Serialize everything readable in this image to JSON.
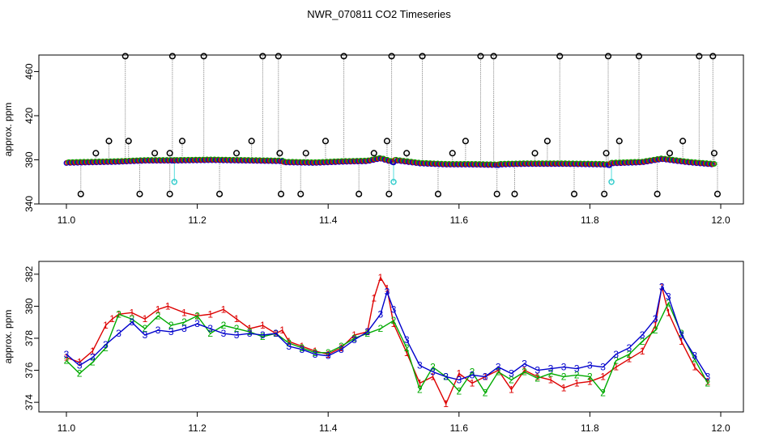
{
  "title": "NWR_070811  CO2 Timeseries",
  "chart_data": [
    {
      "type": "scatter",
      "name": "top-panel",
      "xlabel": "",
      "ylabel": "approx. ppm",
      "xlim": [
        11.0,
        12.0
      ],
      "ylim": [
        340,
        475
      ],
      "xticks": [
        "11.0",
        "11.2",
        "11.4",
        "11.6",
        "11.8",
        "12.0"
      ],
      "yticks": [
        "340",
        "380",
        "420",
        "460"
      ],
      "segments": [
        {
          "x": [
            11.0,
            11.04,
            11.08,
            11.12,
            11.165
          ],
          "y": [
            377.5,
            378,
            378.5,
            379.5,
            379.5
          ]
        },
        {
          "x": [
            11.165,
            11.22,
            11.28,
            11.33
          ],
          "y": [
            379.5,
            380,
            379.5,
            379
          ]
        },
        {
          "x": [
            11.33,
            11.38,
            11.42,
            11.46,
            11.48,
            11.5
          ],
          "y": [
            378,
            377.5,
            378.5,
            379,
            381.5,
            378
          ]
        },
        {
          "x": [
            11.5,
            11.54,
            11.58,
            11.62,
            11.66
          ],
          "y": [
            380,
            377,
            376,
            376,
            375.5
          ]
        },
        {
          "x": [
            11.66,
            11.7,
            11.76,
            11.82,
            11.83
          ],
          "y": [
            376,
            376.5,
            376.5,
            376,
            375.5
          ]
        },
        {
          "x": [
            11.83,
            11.88,
            11.91,
            11.95,
            11.99
          ],
          "y": [
            377,
            378,
            381,
            378,
            376
          ]
        }
      ],
      "high_spikes_x": [
        11.09,
        11.162,
        11.21,
        11.3,
        11.324,
        11.424,
        11.497,
        11.544,
        11.633,
        11.653,
        11.754,
        11.828,
        11.875,
        11.967,
        11.988
      ],
      "high_spike_value": 474,
      "mid_spikes_x": [
        11.045,
        11.065,
        11.095,
        11.135,
        11.158,
        11.177,
        11.26,
        11.283,
        11.326,
        11.366,
        11.396,
        11.47,
        11.49,
        11.52,
        11.59,
        11.61,
        11.716,
        11.735,
        11.825,
        11.845,
        11.922,
        11.942,
        11.99
      ],
      "mid_spike_values": [
        386,
        397,
        397,
        386,
        386,
        397,
        386,
        397,
        386,
        386,
        397,
        386,
        397,
        386,
        386,
        397,
        386,
        397,
        386,
        397,
        386,
        397,
        386
      ],
      "low_spikes_x": [
        11.022,
        11.112,
        11.158,
        11.234,
        11.328,
        11.358,
        11.447,
        11.493,
        11.568,
        11.658,
        11.685,
        11.776,
        11.822,
        11.903,
        11.995
      ],
      "low_spike_value": 349,
      "cyan_points": [
        [
          11.165,
          360
        ],
        [
          11.5,
          360
        ],
        [
          11.833,
          360
        ]
      ]
    },
    {
      "type": "line",
      "name": "bottom-panel",
      "xlabel": "",
      "ylabel": "approx. ppm",
      "xlim": [
        11.0,
        12.0
      ],
      "ylim": [
        373.4,
        382.8
      ],
      "xticks": [
        "11.0",
        "11.2",
        "11.4",
        "11.6",
        "11.8",
        "12.0"
      ],
      "yticks": [
        "374",
        "376",
        "378",
        "380",
        "382"
      ],
      "series": [
        {
          "name": "1",
          "color": "#dd0000",
          "x": [
            11.0,
            11.02,
            11.04,
            11.06,
            11.07,
            11.08,
            11.1,
            11.12,
            11.14,
            11.155,
            11.18,
            11.2,
            11.22,
            11.24,
            11.26,
            11.28,
            11.3,
            11.32,
            11.33,
            11.34,
            11.36,
            11.38,
            11.4,
            11.42,
            11.44,
            11.46,
            11.47,
            11.48,
            11.49,
            11.5,
            11.52,
            11.54,
            11.56,
            11.58,
            11.6,
            11.62,
            11.64,
            11.66,
            11.68,
            11.7,
            11.72,
            11.74,
            11.76,
            11.78,
            11.8,
            11.82,
            11.84,
            11.86,
            11.88,
            11.9,
            11.91,
            11.92,
            11.94,
            11.96,
            11.98
          ],
          "y": [
            376.8,
            376.5,
            377.2,
            378.8,
            379.2,
            379.5,
            379.6,
            379.2,
            379.8,
            380,
            379.6,
            379.4,
            379.5,
            379.8,
            379.2,
            378.6,
            378.8,
            378.3,
            378.5,
            377.8,
            377.5,
            377.2,
            377,
            377.4,
            378.2,
            378.4,
            380.5,
            381.8,
            381.1,
            378.9,
            377.1,
            375.2,
            375.6,
            373.9,
            375.8,
            375.2,
            375.6,
            376,
            374.8,
            376,
            375.6,
            375.4,
            374.9,
            375.2,
            375.3,
            375.6,
            376.2,
            376.7,
            377.2,
            378.8,
            381.2,
            379.6,
            377.8,
            376.2,
            375.3
          ]
        },
        {
          "name": "2",
          "color": "#00aa00",
          "x": [
            11.0,
            11.02,
            11.04,
            11.06,
            11.08,
            11.1,
            11.12,
            11.14,
            11.16,
            11.18,
            11.2,
            11.22,
            11.24,
            11.26,
            11.28,
            11.3,
            11.32,
            11.34,
            11.36,
            11.38,
            11.4,
            11.42,
            11.44,
            11.46,
            11.48,
            11.5,
            11.52,
            11.54,
            11.56,
            11.58,
            11.6,
            11.62,
            11.64,
            11.66,
            11.68,
            11.7,
            11.72,
            11.74,
            11.76,
            11.78,
            11.8,
            11.82,
            11.84,
            11.86,
            11.88,
            11.9,
            11.92,
            11.94,
            11.96,
            11.98
          ],
          "y": [
            376.6,
            375.8,
            376.5,
            377.4,
            379.5,
            379.2,
            378.6,
            379.4,
            378.8,
            379,
            379.4,
            378.3,
            378.8,
            378.6,
            378.4,
            378.1,
            378.3,
            377.7,
            377.4,
            377.1,
            377.1,
            377.5,
            378,
            378.3,
            378.6,
            379.1,
            377.4,
            374.8,
            376.2,
            375.6,
            374.7,
            375.9,
            374.6,
            375.9,
            375.4,
            375.9,
            375.5,
            375.8,
            375.6,
            375.7,
            375.6,
            374.6,
            376.6,
            377,
            377.8,
            378.5,
            380.2,
            378.3,
            376.7,
            375.2
          ]
        },
        {
          "name": "3",
          "color": "#0000cc",
          "x": [
            11.0,
            11.02,
            11.04,
            11.06,
            11.08,
            11.1,
            11.12,
            11.14,
            11.16,
            11.18,
            11.2,
            11.22,
            11.24,
            11.26,
            11.28,
            11.3,
            11.32,
            11.34,
            11.36,
            11.38,
            11.4,
            11.42,
            11.44,
            11.46,
            11.48,
            11.49,
            11.5,
            11.52,
            11.54,
            11.56,
            11.58,
            11.6,
            11.62,
            11.64,
            11.66,
            11.68,
            11.7,
            11.72,
            11.74,
            11.76,
            11.78,
            11.8,
            11.82,
            11.84,
            11.86,
            11.88,
            11.9,
            11.91,
            11.92,
            11.94,
            11.96,
            11.98
          ],
          "y": [
            377,
            376.3,
            376.8,
            377.6,
            378.3,
            379,
            378.2,
            378.5,
            378.4,
            378.6,
            378.9,
            378.6,
            378.3,
            378.2,
            378.3,
            378.2,
            378.3,
            377.5,
            377.3,
            377,
            376.9,
            377.3,
            377.9,
            378.4,
            379.5,
            380.9,
            379.8,
            377.9,
            376.3,
            375.9,
            375.6,
            375.4,
            375.7,
            375.6,
            376.2,
            375.8,
            376.4,
            376,
            376.1,
            376.2,
            376.1,
            376.3,
            376.2,
            377,
            377.4,
            378.2,
            379.2,
            381.2,
            380.6,
            378.2,
            376.9,
            375.6
          ]
        }
      ]
    }
  ]
}
